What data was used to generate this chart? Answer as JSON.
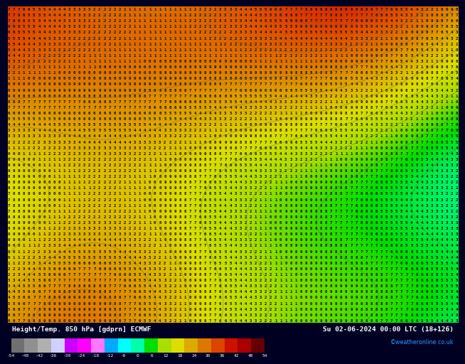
{
  "title_left": "Height/Temp. 850 hPa [gdprn] ECMWF",
  "title_right": "Su 02-06-2024 00:00 LTC (18+126)",
  "attribution": "©weatheronline.co.uk",
  "colorbar_values": [
    -54,
    -48,
    -42,
    -36,
    -30,
    -24,
    -18,
    -12,
    -6,
    0,
    6,
    12,
    18,
    24,
    30,
    36,
    42,
    48,
    54
  ],
  "colorbar_colors": [
    "#707070",
    "#909090",
    "#b0b0b0",
    "#d0d0ff",
    "#cc00ff",
    "#ff00ff",
    "#ff77ff",
    "#00aaff",
    "#00ffff",
    "#00ffaa",
    "#00dd00",
    "#aadd00",
    "#dddd00",
    "#ddaa00",
    "#dd7700",
    "#dd4400",
    "#cc1100",
    "#aa0000",
    "#660000"
  ],
  "bg_color": "#000022",
  "num_rows": 55,
  "num_cols": 90,
  "field_description": "850hPa height field - yellow/orange dominant with green upper-left",
  "colorbar_left_arrow": true
}
